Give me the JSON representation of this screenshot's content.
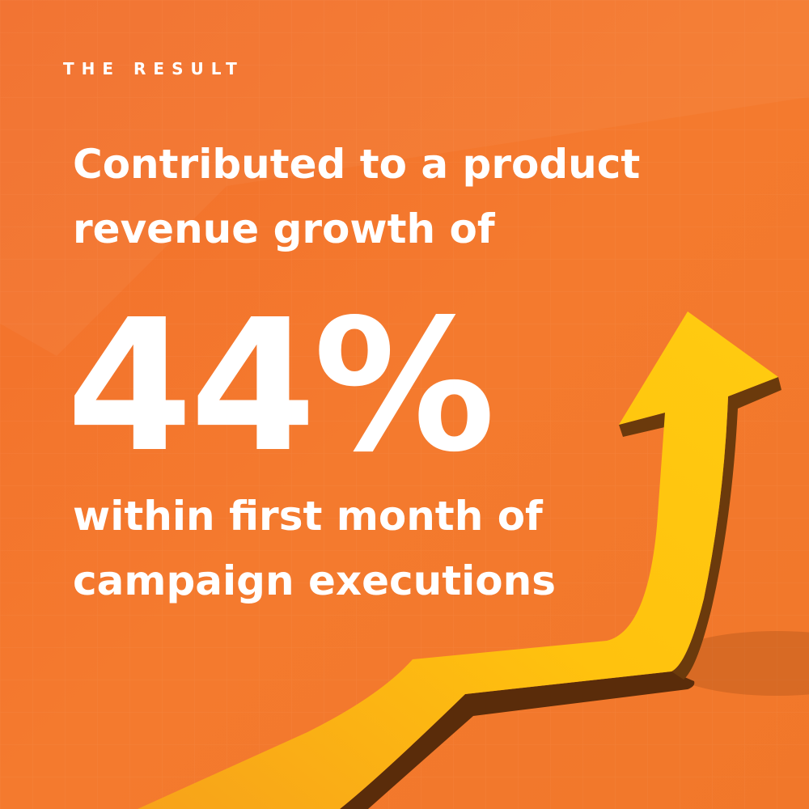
{
  "eyebrow": "THE RESULT",
  "headline": [
    "Contributed to a product",
    "revenue growth of"
  ],
  "stat": "44%",
  "subtext": [
    "within first month of",
    "campaign executions"
  ]
}
